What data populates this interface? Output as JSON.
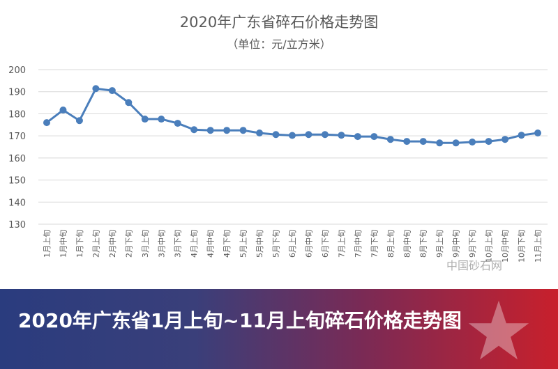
{
  "chart_data": {
    "type": "line",
    "title": "2020年广东省碎石价格走势图",
    "subtitle": "（单位：元/立方米）",
    "xlabel": "",
    "ylabel": "",
    "ylim": [
      130,
      200
    ],
    "yticks": [
      200,
      190,
      180,
      170,
      160,
      150,
      140,
      130
    ],
    "grid": true,
    "color": "#4a7ebb",
    "categories": [
      "1月上旬",
      "1月中旬",
      "1月下旬",
      "2月上旬",
      "2月中旬",
      "2月下旬",
      "3月上旬",
      "3月中旬",
      "3月下旬",
      "4月上旬",
      "4月中旬",
      "4月下旬",
      "5月上旬",
      "5月中旬",
      "5月下旬",
      "6月上旬",
      "6月中旬",
      "6月下旬",
      "7月上旬",
      "7月中旬",
      "7月下旬",
      "8月上旬",
      "8月中旬",
      "8月下旬",
      "9月上旬",
      "9月中旬",
      "9月下旬",
      "10月上旬",
      "10月中旬",
      "10月下旬",
      "11月上旬"
    ],
    "values": [
      176,
      181.7,
      176.9,
      191.4,
      190.5,
      185.1,
      177.6,
      177.6,
      175.7,
      172.8,
      172.5,
      172.5,
      172.5,
      171.3,
      170.6,
      170.2,
      170.6,
      170.6,
      170.3,
      169.7,
      169.7,
      168.4,
      167.5,
      167.5,
      166.8,
      166.8,
      167.2,
      167.5,
      168.4,
      170.3,
      171.3
    ]
  },
  "watermark": "中国砂石网",
  "banner": {
    "text": "2020年广东省1月上旬~11月上旬碎石价格走势图",
    "colors": [
      "#2a3c7e",
      "#c8202c"
    ]
  }
}
